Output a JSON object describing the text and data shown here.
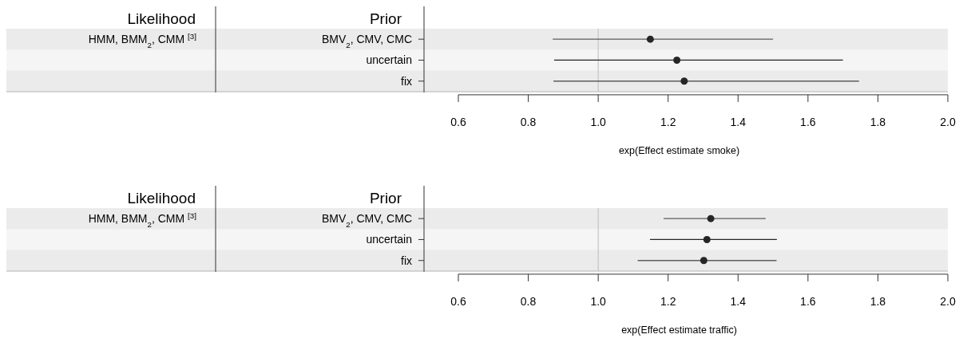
{
  "chart_data": [
    {
      "type": "scatter",
      "orientation": "horizontal",
      "categories": [
        "BMV$_{2}$, CMV, CMC",
        "uncertain",
        "fix"
      ],
      "values": [
        1.149,
        1.225,
        1.246
      ],
      "errors": [
        [
          0.87,
          1.5
        ],
        [
          0.874,
          1.7
        ],
        [
          0.872,
          1.746
        ]
      ],
      "color": "#262626",
      "marker": "circle",
      "xlim": [
        0.6,
        2.0
      ],
      "xticks": [
        {
          "value": 0.6,
          "label": "0.6"
        },
        {
          "value": 0.8,
          "label": "0.8"
        },
        {
          "value": 1.0,
          "label": "1.0"
        },
        {
          "value": 1.2,
          "label": "1.2"
        },
        {
          "value": 1.4,
          "label": "1.4"
        },
        {
          "value": 1.6,
          "label": "1.6"
        },
        {
          "value": 1.8,
          "label": "1.8"
        },
        {
          "value": 2.0,
          "label": "2.0"
        }
      ],
      "xlabel": "exp(Effect estimate smoke)",
      "ylabel": "Prior",
      "annotations": [
        "Likelihood",
        "HMM, BMM$_{2}$, CMM $^{[3]}$"
      ],
      "ref_lines": [
        {
          "axis": "x",
          "value": 1.0,
          "color": "#bdbdbd"
        }
      ]
    },
    {
      "type": "scatter",
      "orientation": "horizontal",
      "categories": [
        "BMV$_{2}$, CMV, CMC",
        "uncertain",
        "fix"
      ],
      "values": [
        1.322,
        1.311,
        1.302
      ],
      "errors": [
        [
          1.187,
          1.479
        ],
        [
          1.148,
          1.511
        ],
        [
          1.113,
          1.51
        ]
      ],
      "color": "#262626",
      "marker": "circle",
      "xlim": [
        0.6,
        2.0
      ],
      "xticks": [
        {
          "value": 0.6,
          "label": "0.6"
        },
        {
          "value": 0.8,
          "label": "0.8"
        },
        {
          "value": 1.0,
          "label": "1.0"
        },
        {
          "value": 1.2,
          "label": "1.2"
        },
        {
          "value": 1.4,
          "label": "1.4"
        },
        {
          "value": 1.6,
          "label": "1.6"
        },
        {
          "value": 1.8,
          "label": "1.8"
        },
        {
          "value": 2.0,
          "label": "2.0"
        }
      ],
      "xlabel": "exp(Effect estimate traffic)",
      "ylabel": "Prior",
      "annotations": [
        "Likelihood",
        "HMM, BMM$_{2}$, CMM $^{[3]}$"
      ],
      "ref_lines": [
        {
          "axis": "x",
          "value": 1.0,
          "color": "#bdbdbd"
        }
      ]
    }
  ]
}
